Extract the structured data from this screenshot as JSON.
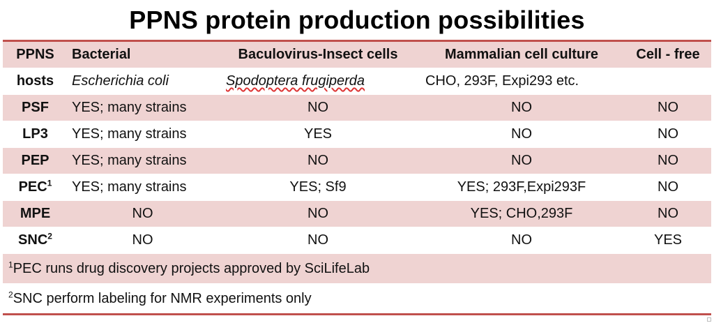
{
  "title": "PPNS protein production possibilities",
  "header": [
    "PPNS",
    "Bacterial",
    "Baculovirus-Insect cells",
    "Mammalian cell culture",
    "Cell - free"
  ],
  "hosts_row": {
    "label": "hosts",
    "bacterial": "Escherichia coli",
    "insect": "Spodoptera frugiperda",
    "mammalian": "CHO, 293F, Expi293 etc.",
    "cellfree": ""
  },
  "rows": [
    {
      "label": "PSF",
      "sup": "",
      "cells": [
        "YES; many strains",
        "NO",
        "NO",
        "NO"
      ]
    },
    {
      "label": "LP3",
      "sup": "",
      "cells": [
        "YES; many strains",
        "YES",
        "NO",
        "NO"
      ]
    },
    {
      "label": "PEP",
      "sup": "",
      "cells": [
        "YES; many strains",
        "NO",
        "NO",
        "NO"
      ]
    },
    {
      "label": "PEC",
      "sup": "1",
      "cells": [
        "YES; many strains",
        "YES; Sf9",
        "YES; 293F,Expi293F",
        "NO"
      ]
    },
    {
      "label": "MPE",
      "sup": "",
      "cells": [
        "NO",
        "NO",
        "YES; CHO,293F",
        "NO"
      ]
    },
    {
      "label": "SNC",
      "sup": "2",
      "cells": [
        "NO",
        "NO",
        "NO",
        "YES"
      ]
    }
  ],
  "footnotes": [
    {
      "mark": "1",
      "text": "PEC runs drug discovery projects approved by SciLifeLab"
    },
    {
      "mark": "2",
      "text": "SNC perform labeling for NMR experiments only"
    }
  ]
}
